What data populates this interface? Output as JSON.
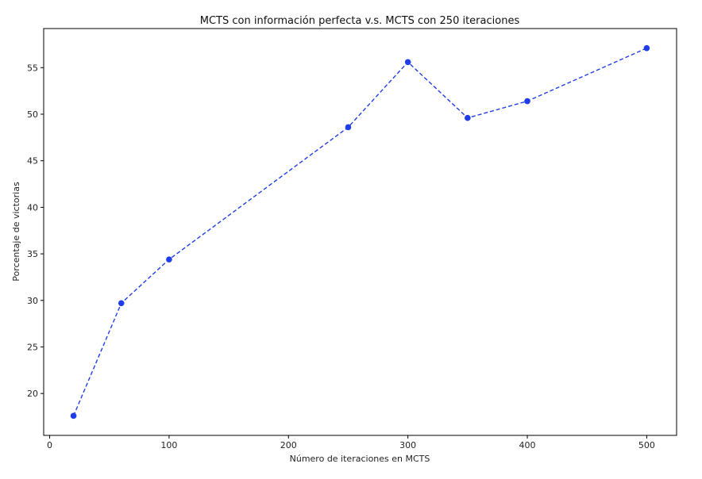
{
  "chart_data": {
    "type": "line",
    "title": "MCTS con información perfecta v.s. MCTS con 250 iteraciones",
    "xlabel": "Número de iteraciones en MCTS",
    "ylabel": "Porcentaje de victorias",
    "x": [
      20,
      60,
      100,
      250,
      300,
      350,
      400,
      500
    ],
    "series": [
      {
        "values": [
          17.6,
          29.7,
          34.4,
          48.6,
          55.6,
          49.6,
          51.4,
          57.1
        ],
        "color": "#1f3de8",
        "linestyle": "dashed",
        "marker": "circle"
      }
    ],
    "xlim": [
      -5,
      525
    ],
    "ylim": [
      15.5,
      59.2
    ],
    "xticks": [
      0,
      100,
      200,
      300,
      400,
      500
    ],
    "yticks": [
      20,
      25,
      30,
      35,
      40,
      45,
      50,
      55
    ],
    "grid": false
  }
}
